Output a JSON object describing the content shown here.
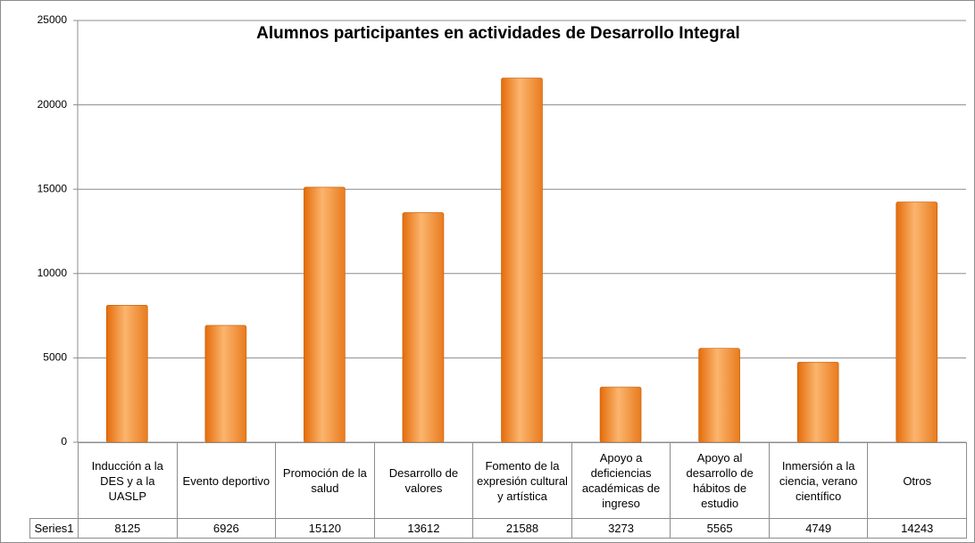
{
  "chart_data": {
    "type": "bar",
    "title": "Alumnos participantes en actividades de Desarrollo Integral",
    "categories": [
      "Inducción a la DES y a la UASLP",
      "Evento deportivo",
      "Promoción de la salud",
      "Desarrollo de valores",
      "Fomento de la expresión cultural y artística",
      "Apoyo a deficiencias académicas de ingreso",
      "Apoyo al desarrollo de hábitos de estudio",
      "Inmersión a la ciencia, verano científico",
      "Otros"
    ],
    "series": [
      {
        "name": "Series1",
        "color": "#f79646",
        "values": [
          8125,
          6926,
          15120,
          13612,
          21588,
          3273,
          5565,
          4749,
          14243
        ]
      }
    ],
    "ylim": [
      0,
      25000
    ],
    "yticks": [
      0,
      5000,
      10000,
      15000,
      20000,
      25000
    ],
    "grid": true,
    "data_table": true
  }
}
